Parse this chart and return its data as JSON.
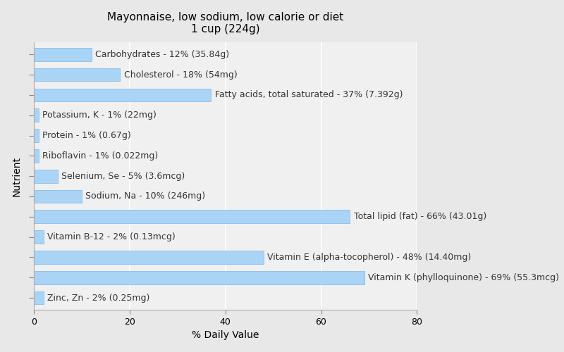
{
  "title": "Mayonnaise, low sodium, low calorie or diet\n1 cup (224g)",
  "xlabel": "% Daily Value",
  "ylabel": "Nutrient",
  "background_color": "#e8e8e8",
  "plot_background_color": "#f0f0f0",
  "bar_color": "#aad4f5",
  "bar_edge_color": "#7ab8e8",
  "nutrients": [
    "Zinc, Zn - 2% (0.25mg)",
    "Vitamin K (phylloquinone) - 69% (55.3mcg)",
    "Vitamin E (alpha-tocopherol) - 48% (14.40mg)",
    "Vitamin B-12 - 2% (0.13mcg)",
    "Total lipid (fat) - 66% (43.01g)",
    "Sodium, Na - 10% (246mg)",
    "Selenium, Se - 5% (3.6mcg)",
    "Riboflavin - 1% (0.022mg)",
    "Protein - 1% (0.67g)",
    "Potassium, K - 1% (22mg)",
    "Fatty acids, total saturated - 37% (7.392g)",
    "Cholesterol - 18% (54mg)",
    "Carbohydrates - 12% (35.84g)"
  ],
  "values": [
    2,
    69,
    48,
    2,
    66,
    10,
    5,
    1,
    1,
    1,
    37,
    18,
    12
  ],
  "xlim": [
    0,
    80
  ],
  "xticks": [
    0,
    20,
    40,
    60,
    80
  ],
  "grid_color": "#ffffff",
  "title_fontsize": 11,
  "label_fontsize": 9,
  "tick_fontsize": 9,
  "bar_height": 0.65
}
